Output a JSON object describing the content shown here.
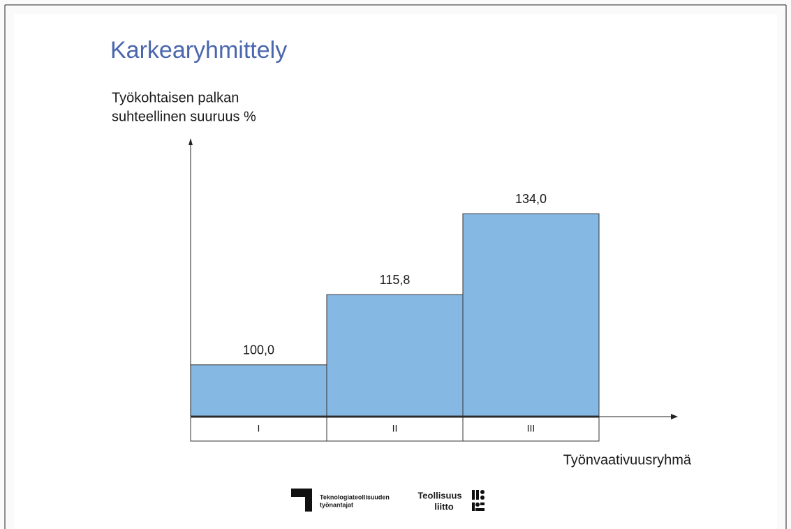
{
  "chart_data": {
    "type": "bar",
    "title": "Karkearyhmittely",
    "y_label": [
      "Työkohtaisen palkan",
      "suhteellinen suuruus %"
    ],
    "x_label": "Työnvaativuusryhmä",
    "categories": [
      "I",
      "II",
      "III"
    ],
    "values": [
      100.0,
      115.8,
      134.0
    ],
    "value_labels": [
      "100,0",
      "115,8",
      "134,0"
    ],
    "color": "#85b8e3",
    "ylim": [
      88.5,
      151
    ]
  },
  "logos": {
    "left": [
      "Teknologiateollisuuden",
      "työnantajat"
    ],
    "right": [
      "Teollisuus",
      "liitto"
    ]
  }
}
